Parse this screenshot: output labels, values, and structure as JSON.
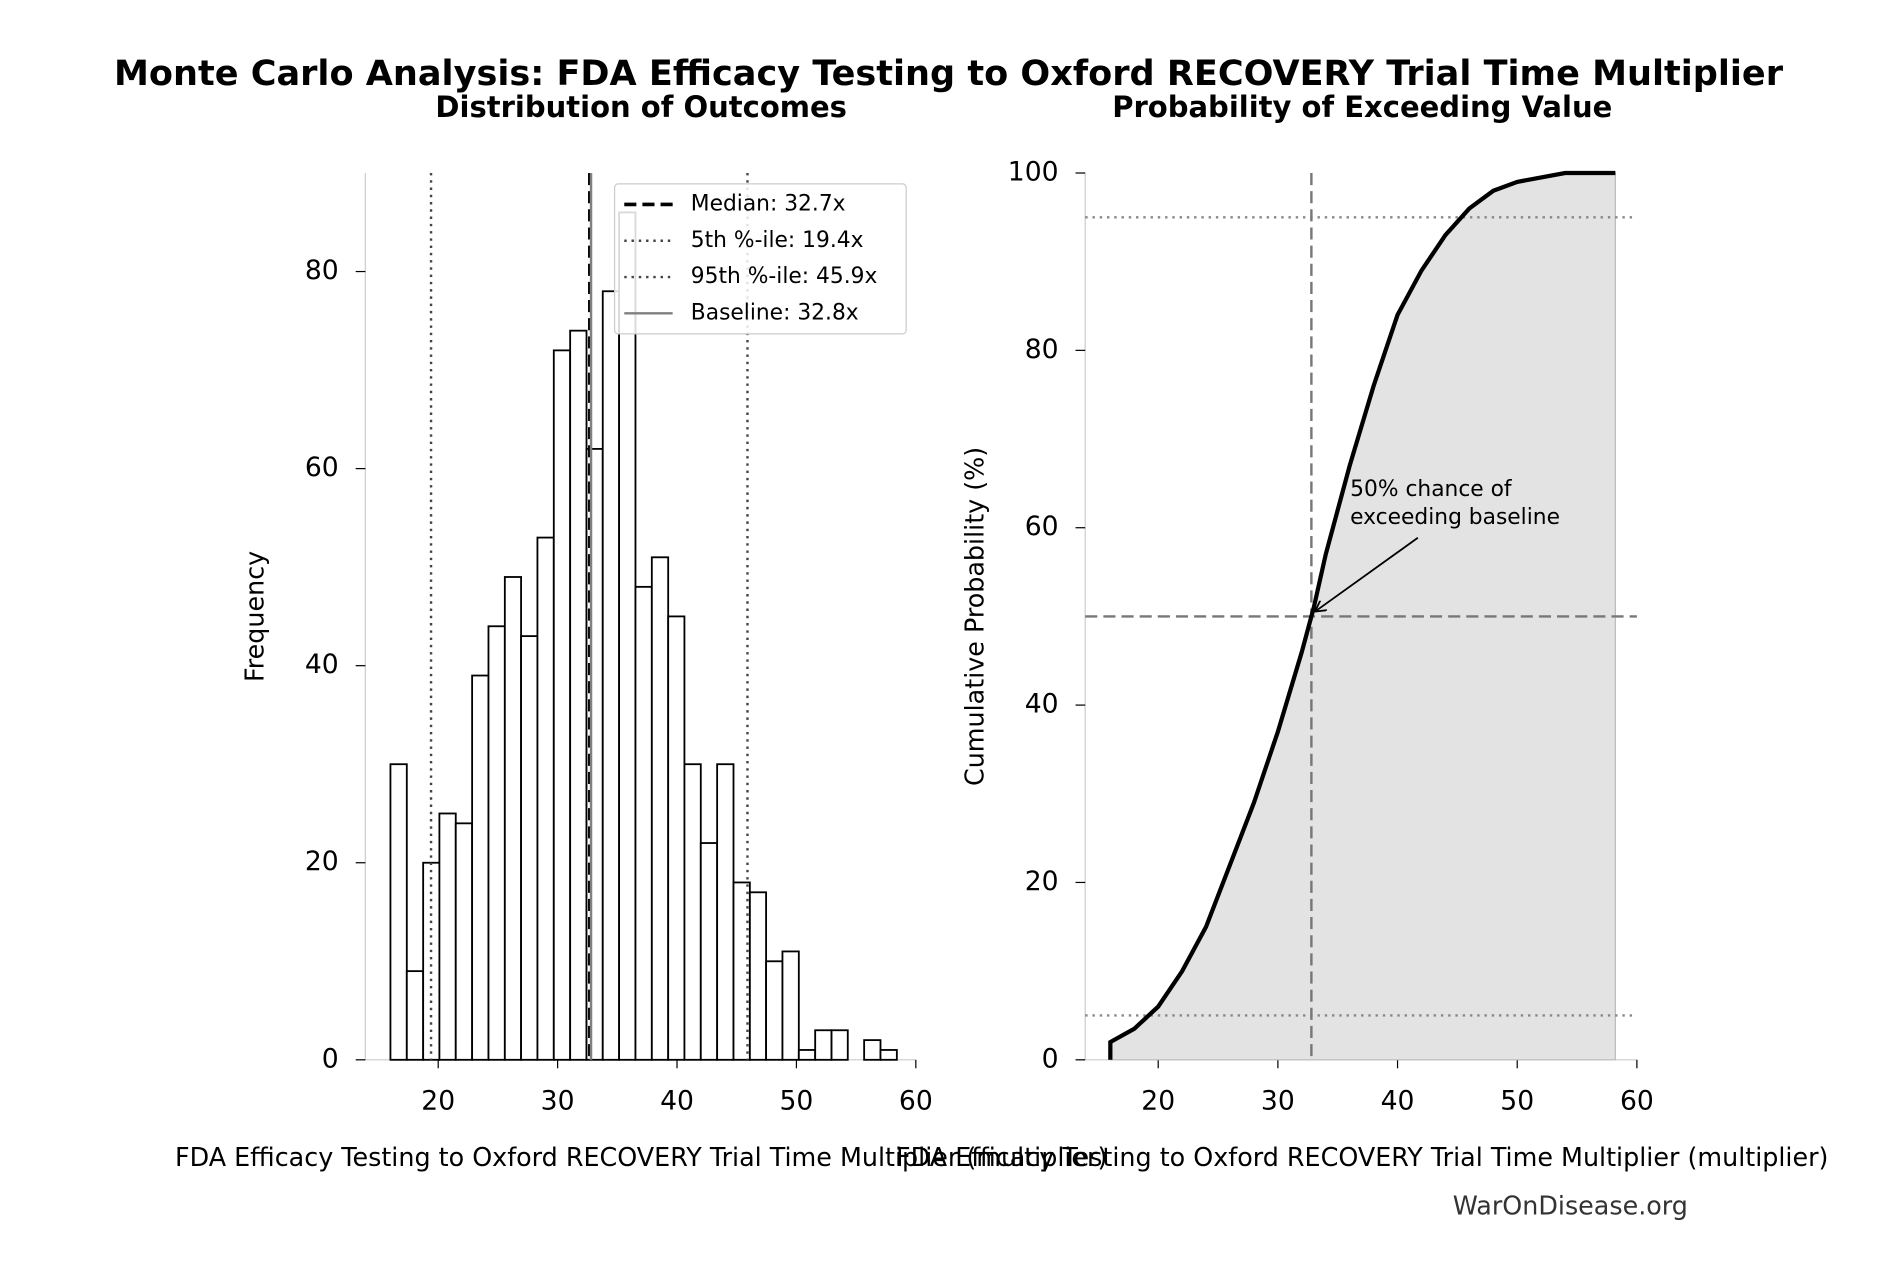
{
  "title": "Monte Carlo Analysis: FDA Efficacy Testing to Oxford RECOVERY Trial Time Multiplier",
  "footer": "WarOnDisease.org",
  "chart_data": [
    {
      "type": "histogram",
      "title": "Distribution of Outcomes",
      "x_label": "FDA Efficacy Testing to Oxford RECOVERY Trial Time Multiplier (multiplier)",
      "y_label": "Frequency",
      "bins": [
        16.0,
        17.37,
        18.74,
        20.1,
        21.47,
        22.84,
        24.21,
        25.58,
        26.94,
        28.31,
        29.68,
        31.05,
        32.42,
        33.78,
        35.15,
        36.52,
        37.89,
        39.26,
        40.62,
        41.99,
        43.36,
        44.73,
        46.1,
        47.46,
        48.83,
        50.2,
        51.57,
        52.94,
        54.3,
        55.67,
        57.04,
        58.41
      ],
      "values": [
        30,
        9,
        20,
        25,
        24,
        39,
        44,
        49,
        43,
        53,
        72,
        74,
        62,
        78,
        86,
        48,
        51,
        45,
        30,
        22,
        30,
        18,
        17,
        10,
        11,
        1,
        3,
        3,
        0,
        2,
        1
      ],
      "color": "#ffffff",
      "edge_color": "#000000",
      "xlim": [
        13.9,
        60
      ],
      "ylim": [
        0,
        90
      ],
      "xticks": [
        20,
        30,
        40,
        50,
        60
      ],
      "yticks": [
        0,
        20,
        40,
        60,
        80
      ],
      "lines": [
        {
          "name": "Median: 32.7x",
          "value": 32.7,
          "style": "dashed",
          "color": "#000000",
          "width": 3
        },
        {
          "name": "5th %-ile: 19.4x",
          "value": 19.4,
          "style": "dotted",
          "color": "#444444",
          "width": 2
        },
        {
          "name": "95th %-ile: 45.9x",
          "value": 45.9,
          "style": "dotted",
          "color": "#444444",
          "width": 2
        },
        {
          "name": "Baseline: 32.8x",
          "value": 32.8,
          "style": "solid",
          "color": "#808080",
          "width": 2
        }
      ],
      "legend": "upper right"
    },
    {
      "type": "cdf",
      "title": "Probability of Exceeding Value",
      "x_label": "FDA Efficacy Testing to Oxford RECOVERY Trial Time Multiplier (multiplier)",
      "y_label": "Cumulative Probability (%)",
      "x": [
        16,
        16,
        18,
        20,
        22,
        24,
        26,
        28,
        30,
        32,
        33,
        34,
        36,
        38,
        40,
        42,
        44,
        46,
        48,
        50,
        54,
        58.2
      ],
      "values": [
        0,
        2,
        3.5,
        6,
        10,
        15,
        22,
        29,
        37,
        46,
        51,
        57,
        67,
        76,
        84,
        89,
        93,
        96,
        98,
        99,
        100,
        100
      ],
      "color": "#000000",
      "fill": "#e3e3e3",
      "xlim": [
        13.9,
        60
      ],
      "ylim": [
        0,
        100
      ],
      "xticks": [
        20,
        30,
        40,
        50,
        60
      ],
      "yticks": [
        0,
        20,
        40,
        60,
        80,
        100
      ],
      "hlines": [
        {
          "value": 5,
          "style": "dotted",
          "color": "#888888"
        },
        {
          "value": 50,
          "style": "dashed",
          "color": "#777777"
        },
        {
          "value": 95,
          "style": "dotted",
          "color": "#888888"
        }
      ],
      "vline": {
        "value": 32.8,
        "style": "dashed",
        "color": "#777777"
      },
      "annotation": {
        "text_lines": [
          "50% chance of",
          "exceeding baseline"
        ],
        "xy": [
          32.8,
          50
        ]
      }
    }
  ]
}
